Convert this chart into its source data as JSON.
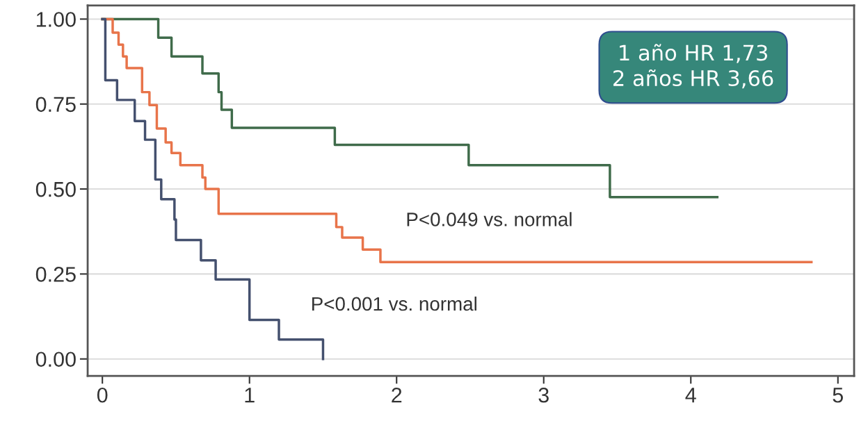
{
  "chart_data": {
    "type": "step",
    "series": [
      {
        "color": "#3f6b4a",
        "x": [
          0,
          0.38,
          0.47,
          0.68,
          0.79,
          0.81,
          0.88,
          1.58,
          2.49,
          3.45,
          4.18
        ],
        "values": [
          1.0,
          0.945,
          0.89,
          0.84,
          0.785,
          0.733,
          0.68,
          0.63,
          0.57,
          0.476,
          0.476
        ]
      },
      {
        "color": "#e8744a",
        "x": [
          0,
          0.07,
          0.11,
          0.14,
          0.165,
          0.27,
          0.32,
          0.37,
          0.43,
          0.47,
          0.53,
          0.68,
          0.7,
          0.79,
          1.59,
          1.63,
          1.77,
          1.89,
          4.82
        ],
        "values": [
          1.0,
          0.96,
          0.925,
          0.89,
          0.856,
          0.785,
          0.747,
          0.678,
          0.637,
          0.606,
          0.57,
          0.534,
          0.5,
          0.427,
          0.388,
          0.357,
          0.322,
          0.285,
          0.285
        ]
      },
      {
        "color": "#44506e",
        "x": [
          0,
          0.02,
          0.1,
          0.22,
          0.29,
          0.36,
          0.4,
          0.49,
          0.5,
          0.67,
          0.77,
          1.0,
          1.2,
          1.5
        ],
        "values": [
          1.0,
          0.82,
          0.762,
          0.7,
          0.645,
          0.528,
          0.47,
          0.41,
          0.35,
          0.29,
          0.234,
          0.115,
          0.057,
          0.0
        ]
      }
    ],
    "xlim": [
      -0.1,
      5.11
    ],
    "ylim": [
      -0.05,
      1.04
    ],
    "xticks": [
      0,
      1,
      2,
      3,
      4,
      5
    ],
    "yticks": [
      {
        "value": 0,
        "label": "0.00"
      },
      {
        "value": 0.25,
        "label": "0.25"
      },
      {
        "value": 0.5,
        "label": "0.50"
      },
      {
        "value": 0.75,
        "label": "0.75"
      },
      {
        "value": 1,
        "label": "1.00"
      }
    ],
    "grid": "y",
    "annotations": [
      "P<0.049 vs. normal",
      "P<0.001 vs. normal",
      "1 año HR 1,73\n2 años HR 3,66"
    ]
  }
}
